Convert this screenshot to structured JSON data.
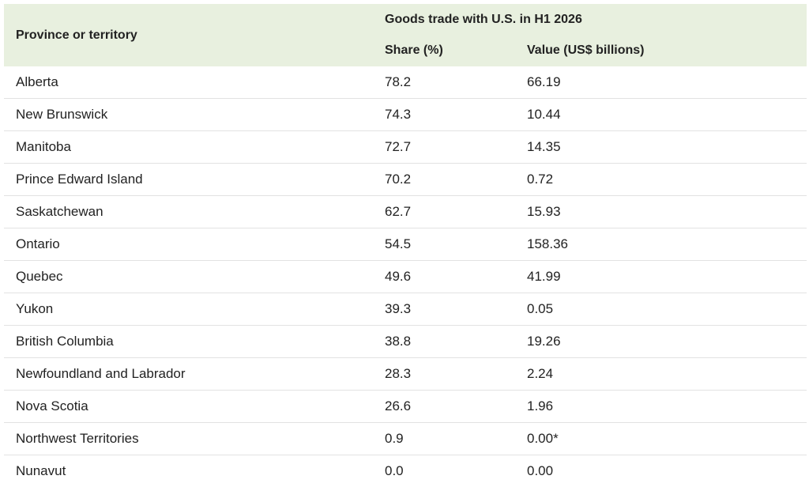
{
  "table": {
    "header": {
      "first_column": "Province or territory",
      "group_title": "Goods trade with U.S. in H1 2026",
      "share_column": "Share (%)",
      "value_column": "Value (US$ billions)"
    },
    "rows": [
      {
        "region": "Alberta",
        "share": "78.2",
        "value": "66.19"
      },
      {
        "region": "New Brunswick",
        "share": "74.3",
        "value": "10.44"
      },
      {
        "region": "Manitoba",
        "share": "72.7",
        "value": "14.35"
      },
      {
        "region": "Prince Edward Island",
        "share": "70.2",
        "value": "0.72"
      },
      {
        "region": "Saskatchewan",
        "share": "62.7",
        "value": "15.93"
      },
      {
        "region": "Ontario",
        "share": "54.5",
        "value": "158.36"
      },
      {
        "region": "Quebec",
        "share": "49.6",
        "value": "41.99"
      },
      {
        "region": "Yukon",
        "share": "39.3",
        "value": "0.05"
      },
      {
        "region": "British Columbia",
        "share": "38.8",
        "value": "19.26"
      },
      {
        "region": "Newfoundland and Labrador",
        "share": "28.3",
        "value": "2.24"
      },
      {
        "region": "Nova Scotia",
        "share": "26.6",
        "value": "1.96"
      },
      {
        "region": "Northwest Territories",
        "share": "0.9",
        "value": "0.00*"
      },
      {
        "region": "Nunavut",
        "share": "0.0",
        "value": "0.00"
      }
    ]
  },
  "colors": {
    "header_background": "#e8f0df",
    "row_divider": "#e2e2e2"
  }
}
